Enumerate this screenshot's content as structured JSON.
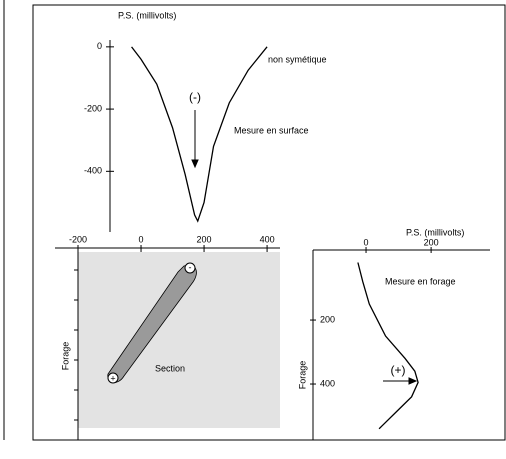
{
  "chart_data": [
    {
      "type": "line",
      "ylabel": "P.S. (millivolts)",
      "annotations": [
        "(-)",
        "non symétique",
        "Mesure en surface"
      ],
      "x": [
        -30,
        0,
        50,
        100,
        140,
        170,
        180,
        200,
        230,
        280,
        340,
        400
      ],
      "values": [
        0,
        -40,
        -120,
        -260,
        -410,
        -540,
        -560,
        -500,
        -320,
        -180,
        -75,
        0
      ],
      "xlim": [
        -273,
        441
      ],
      "ylim": [
        -595,
        22
      ],
      "yticks": [
        0,
        -200,
        -400
      ],
      "color": "#000000"
    },
    {
      "type": "section",
      "ylabel": "Forage",
      "annotation": "Section",
      "markers": [
        "-",
        "+"
      ],
      "xlim": [
        -273,
        441
      ],
      "xticks": [
        -200,
        0,
        200,
        400
      ],
      "color": "#e3e3e3"
    },
    {
      "type": "profile",
      "xlabel": "P.S. (millivolts)",
      "ylabel": "Forage",
      "annotations": [
        "Mesure en forage",
        "(+)"
      ],
      "depth": [
        20,
        80,
        150,
        250,
        320,
        360,
        395,
        440,
        480,
        540
      ],
      "values": [
        -25,
        -10,
        10,
        60,
        120,
        150,
        160,
        140,
        100,
        40
      ],
      "xlim": [
        -163,
        381
      ],
      "ylim": [
        575,
        -19
      ],
      "xticks": [
        0,
        200
      ],
      "yticks": [
        200,
        400
      ],
      "color": "#000000"
    }
  ]
}
